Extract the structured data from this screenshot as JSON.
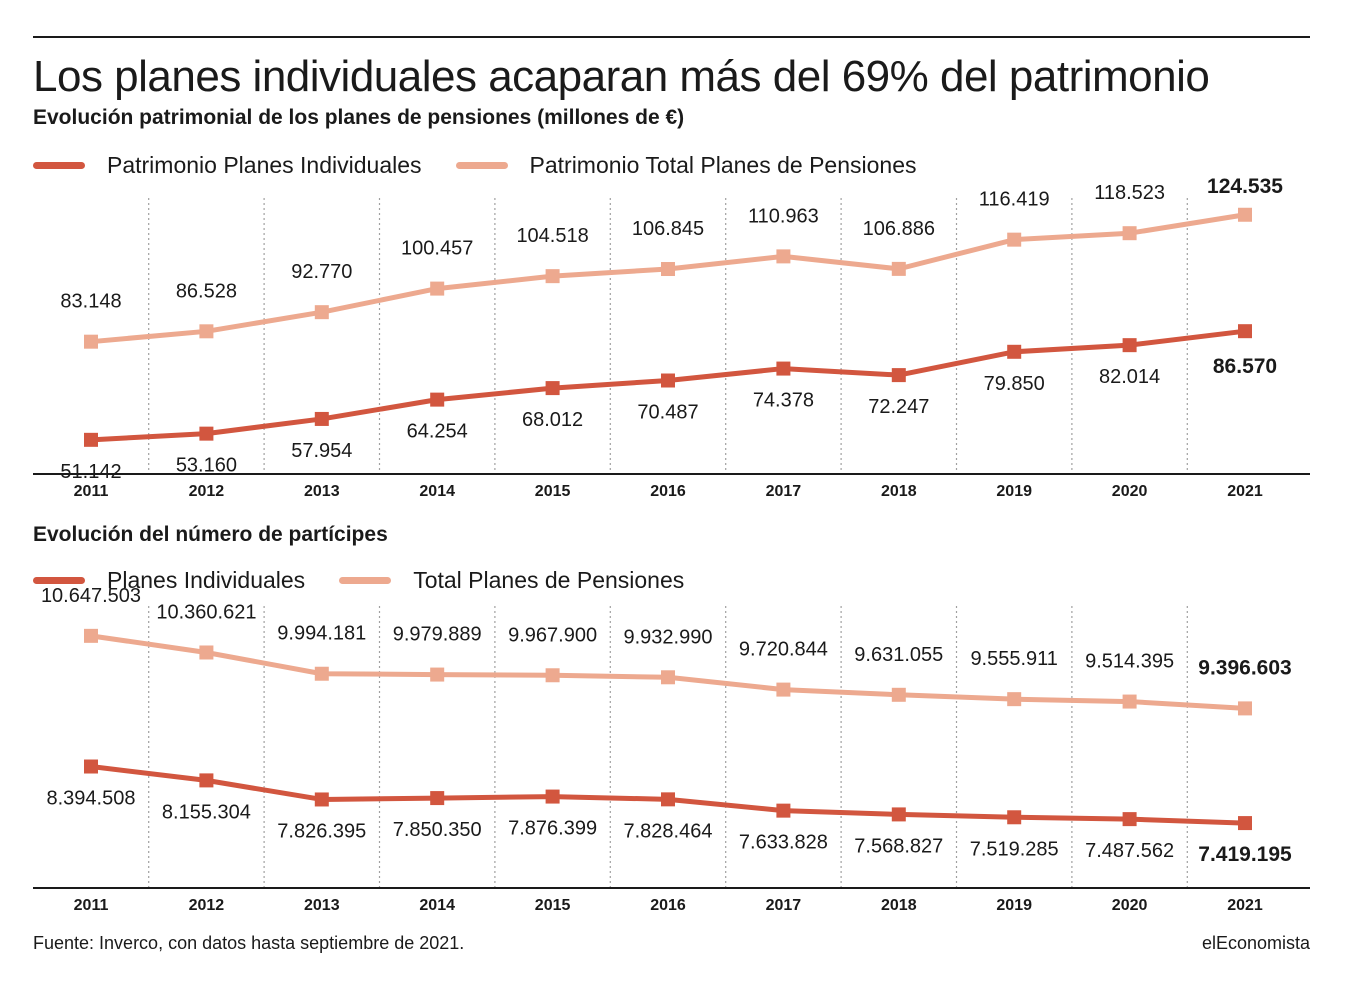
{
  "title": "Los planes individuales acaparan más del 69% del patrimonio",
  "source": "Fuente: Inverco, con datos hasta septiembre de 2021.",
  "brand": "elEconomista",
  "colors": {
    "dark": "#d2563f",
    "light": "#eda98f",
    "grid": "#a0a0a0",
    "axis": "#1a1a1a"
  },
  "chart_data": [
    {
      "type": "line",
      "title": "Evolución patrimonial de los planes de pensiones (millones de €)",
      "legend_position": "top-left",
      "grid": "vertical-dotted",
      "ylim": [
        40000,
        130000
      ],
      "x": [
        "2011",
        "2012",
        "2013",
        "2014",
        "2015",
        "2016",
        "2017",
        "2018",
        "2019",
        "2020",
        "2021"
      ],
      "series": [
        {
          "name": "Patrimonio Planes Individuales",
          "color": "#d2563f",
          "values": [
            51142,
            53160,
            57954,
            64254,
            68012,
            70487,
            74378,
            72247,
            79850,
            82014,
            86570
          ],
          "labels": [
            "51.142",
            "53.160",
            "57.954",
            "64.254",
            "68.012",
            "70.487",
            "74.378",
            "72.247",
            "79.850",
            "82.014",
            "86.570"
          ]
        },
        {
          "name": "Patrimonio Total Planes de Pensiones",
          "color": "#eda98f",
          "values": [
            83148,
            86528,
            92770,
            100457,
            104518,
            106845,
            110963,
            106886,
            116419,
            118523,
            124535
          ],
          "labels": [
            "83.148",
            "86.528",
            "92.770",
            "100.457",
            "104.518",
            "106.845",
            "110.963",
            "106.886",
            "116.419",
            "118.523",
            "124.535"
          ]
        }
      ]
    },
    {
      "type": "line",
      "title": "Evolución del número de partícipes",
      "legend_position": "top-left",
      "grid": "vertical-dotted",
      "ylim": [
        6300000,
        11300000
      ],
      "x": [
        "2011",
        "2012",
        "2013",
        "2014",
        "2015",
        "2016",
        "2017",
        "2018",
        "2019",
        "2020",
        "2021"
      ],
      "series": [
        {
          "name": "Planes Individuales",
          "color": "#d2563f",
          "values": [
            8394508,
            8155304,
            7826395,
            7850350,
            7876399,
            7828464,
            7633828,
            7568827,
            7519285,
            7487562,
            7419195
          ],
          "labels": [
            "8.394.508",
            "8.155.304",
            "7.826.395",
            "7.850.350",
            "7.876.399",
            "7.828.464",
            "7.633.828",
            "7.568.827",
            "7.519.285",
            "7.487.562",
            "7.419.195"
          ]
        },
        {
          "name": "Total Planes de Pensiones",
          "color": "#eda98f",
          "values": [
            10647503,
            10360621,
            9994181,
            9979889,
            9967900,
            9932990,
            9720844,
            9631055,
            9555911,
            9514395,
            9396603
          ],
          "labels": [
            "10.647.503",
            "10.360.621",
            "9.994.181",
            "9.979.889",
            "9.967.900",
            "9.932.990",
            "9.720.844",
            "9.631.055",
            "9.555.911",
            "9.514.395",
            "9.396.603"
          ]
        }
      ]
    }
  ]
}
